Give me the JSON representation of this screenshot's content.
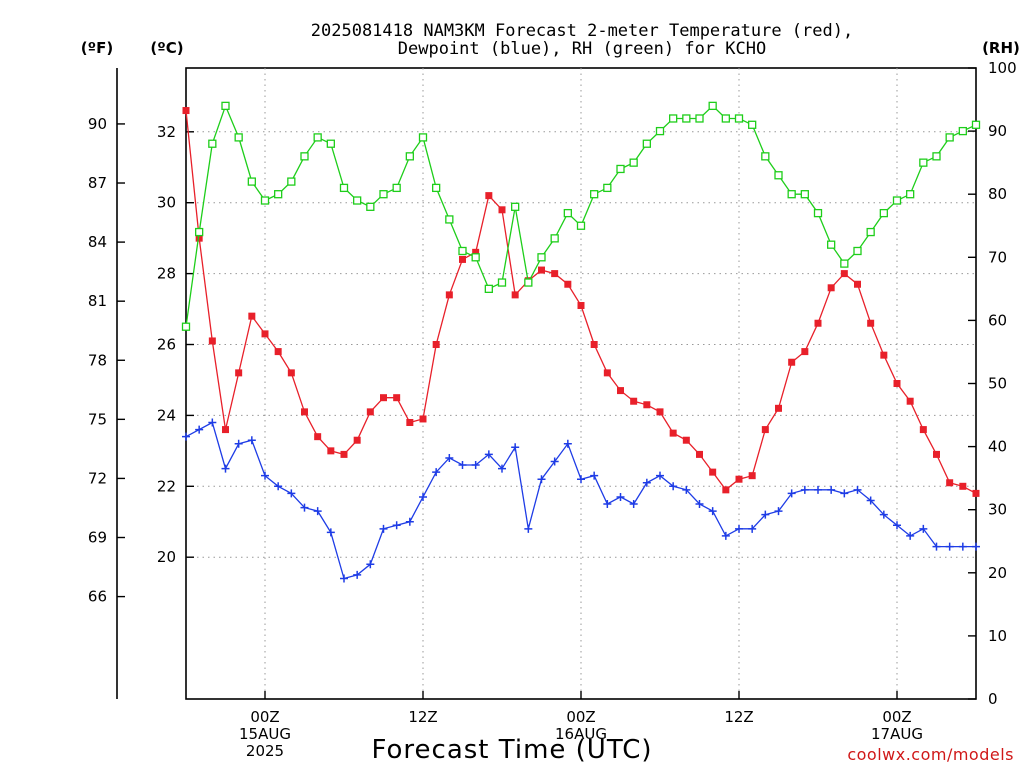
{
  "chart_data": {
    "type": "line",
    "title_line1": "2025081418 NAM3KM Forecast 2-meter Temperature (red),",
    "title_line2": "Dewpoint (blue), RH (green) for KCHO",
    "xlabel": "Forecast Time (UTC)",
    "credit": "coolwx.com/models",
    "units": {
      "left_outer": "(ºF)",
      "left_inner": "(ºC)",
      "right": "(RH)"
    },
    "x_ticks": [
      {
        "hour": 6,
        "lines": [
          "00Z",
          "15AUG",
          "2025"
        ]
      },
      {
        "hour": 18,
        "lines": [
          "12Z"
        ]
      },
      {
        "hour": 30,
        "lines": [
          "00Z",
          "16AUG"
        ]
      },
      {
        "hour": 42,
        "lines": [
          "12Z"
        ]
      },
      {
        "hour": 54,
        "lines": [
          "00Z",
          "17AUG"
        ]
      }
    ],
    "x_range_hours": [
      0,
      60
    ],
    "x_range_times": [
      "2025-08-14 18Z",
      "2025-08-17 06Z"
    ],
    "y_celsius": {
      "range": [
        16,
        33.8
      ],
      "ticks": [
        20,
        22,
        24,
        26,
        28,
        30,
        32
      ]
    },
    "y_fahrenheit": {
      "ticks": [
        66,
        69,
        72,
        75,
        78,
        81,
        84,
        87,
        90
      ]
    },
    "y_rh": {
      "range": [
        0,
        100
      ],
      "ticks": [
        0,
        10,
        20,
        30,
        40,
        50,
        60,
        70,
        80,
        90,
        100
      ]
    },
    "grid": true,
    "x_hours": [
      0,
      1,
      2,
      3,
      4,
      5,
      6,
      7,
      8,
      9,
      10,
      11,
      12,
      13,
      14,
      15,
      16,
      17,
      18,
      19,
      20,
      21,
      22,
      23,
      24,
      25,
      26,
      27,
      28,
      29,
      30,
      31,
      32,
      33,
      34,
      35,
      36,
      37,
      38,
      39,
      40,
      41,
      42,
      43,
      44,
      45,
      46,
      47,
      48,
      49,
      50,
      51,
      52,
      53,
      54,
      55,
      56,
      57,
      58,
      59,
      60
    ],
    "series": [
      {
        "name": "2-meter Temperature",
        "axis": "celsius",
        "color": "#e8202a",
        "marker": "filled-square",
        "values": [
          32.6,
          29.0,
          26.1,
          23.6,
          25.2,
          26.8,
          26.3,
          25.8,
          25.2,
          24.1,
          23.4,
          23.0,
          22.9,
          23.3,
          24.1,
          24.5,
          24.5,
          23.8,
          23.9,
          26.0,
          27.4,
          28.4,
          28.6,
          30.2,
          29.8,
          27.4,
          27.8,
          28.1,
          28.0,
          27.7,
          27.1,
          26.0,
          25.2,
          24.7,
          24.4,
          24.3,
          24.1,
          23.5,
          23.3,
          22.9,
          22.4,
          21.9,
          22.2,
          22.3,
          23.6,
          24.2,
          25.5,
          25.8,
          26.6,
          27.6,
          28.0,
          27.7,
          26.6,
          25.7,
          24.9,
          24.4,
          23.6,
          22.9,
          22.1,
          22.0,
          21.8
        ]
      },
      {
        "name": "Dewpoint",
        "axis": "celsius",
        "color": "#1e3ce6",
        "marker": "plus",
        "values": [
          23.4,
          23.6,
          23.8,
          22.5,
          23.2,
          23.3,
          22.3,
          22.0,
          21.8,
          21.4,
          21.3,
          20.7,
          19.4,
          19.5,
          19.8,
          20.8,
          20.9,
          21.0,
          21.7,
          22.4,
          22.8,
          22.6,
          22.6,
          22.9,
          22.5,
          23.1,
          20.8,
          22.2,
          22.7,
          23.2,
          22.2,
          22.3,
          21.5,
          21.7,
          21.5,
          22.1,
          22.3,
          22.0,
          21.9,
          21.5,
          21.3,
          20.6,
          20.8,
          20.8,
          21.2,
          21.3,
          21.8,
          21.9,
          21.9,
          21.9,
          21.8,
          21.9,
          21.6,
          21.2,
          20.9,
          20.6,
          20.8,
          20.3,
          20.3,
          20.3,
          20.3
        ]
      },
      {
        "name": "RH",
        "axis": "rh",
        "color": "#1ece1a",
        "marker": "open-square",
        "values": [
          59,
          74,
          88,
          94,
          89,
          82,
          79,
          80,
          82,
          86,
          89,
          88,
          81,
          79,
          78,
          80,
          81,
          86,
          89,
          81,
          76,
          71,
          70,
          65,
          66,
          78,
          66,
          70,
          73,
          77,
          75,
          80,
          81,
          84,
          85,
          88,
          90,
          92,
          92,
          92,
          94,
          92,
          92,
          91,
          86,
          83,
          80,
          80,
          77,
          72,
          69,
          71,
          74,
          77,
          79,
          80,
          85,
          86,
          89,
          90,
          91
        ]
      }
    ]
  }
}
